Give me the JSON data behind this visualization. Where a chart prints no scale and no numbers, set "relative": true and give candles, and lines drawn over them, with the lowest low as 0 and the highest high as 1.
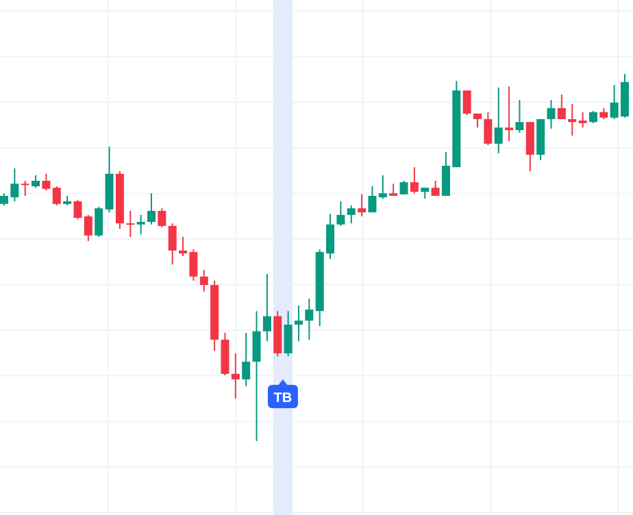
{
  "chart_data": {
    "type": "candlestick",
    "relative": true,
    "grid": true,
    "categories": [
      null,
      null,
      null,
      null,
      null,
      null,
      null,
      null,
      null,
      null,
      null,
      null,
      null,
      null,
      null,
      null,
      null,
      null,
      null,
      null,
      null,
      null,
      null,
      null,
      null,
      null,
      null,
      null,
      null,
      null,
      null,
      null,
      null,
      null,
      null,
      null,
      null,
      null,
      null,
      null,
      null,
      null,
      null,
      null,
      null,
      null,
      null,
      null,
      null,
      null,
      null,
      null,
      null,
      null,
      null,
      null,
      null,
      null,
      null,
      null
    ],
    "annotations": [
      "TB"
    ],
    "ohlc": [
      [
        0.646,
        0.675,
        0.642,
        0.668
      ],
      [
        0.664,
        0.743,
        0.653,
        0.701
      ],
      [
        0.701,
        0.709,
        0.668,
        0.698
      ],
      [
        0.694,
        0.724,
        0.69,
        0.709
      ],
      [
        0.709,
        0.728,
        0.683,
        0.687
      ],
      [
        0.69,
        0.694,
        0.642,
        0.646
      ],
      [
        0.646,
        0.668,
        0.642,
        0.653
      ],
      [
        0.653,
        0.657,
        0.604,
        0.608
      ],
      [
        0.612,
        0.616,
        0.545,
        0.56
      ],
      [
        0.56,
        0.638,
        0.556,
        0.634
      ],
      [
        0.631,
        0.802,
        0.623,
        0.728
      ],
      [
        0.728,
        0.735,
        0.578,
        0.593
      ],
      [
        0.593,
        0.627,
        0.556,
        0.59
      ],
      [
        0.59,
        0.616,
        0.563,
        0.597
      ],
      [
        0.597,
        0.675,
        0.59,
        0.627
      ],
      [
        0.627,
        0.634,
        0.582,
        0.586
      ],
      [
        0.586,
        0.593,
        0.481,
        0.519
      ],
      [
        0.519,
        0.556,
        0.504,
        0.511
      ],
      [
        0.515,
        0.522,
        0.437,
        0.448
      ],
      [
        0.448,
        0.466,
        0.407,
        0.425
      ],
      [
        0.425,
        0.437,
        0.246,
        0.276
      ],
      [
        0.276,
        0.295,
        0.179,
        0.183
      ],
      [
        0.183,
        0.239,
        0.116,
        0.168
      ],
      [
        0.168,
        0.295,
        0.149,
        0.216
      ],
      [
        0.216,
        0.354,
        0,
        0.299
      ],
      [
        0.299,
        0.455,
        0.272,
        0.34
      ],
      [
        0.34,
        0.354,
        0.231,
        0.239
      ],
      [
        0.239,
        0.354,
        0.231,
        0.317
      ],
      [
        0.317,
        0.369,
        0.272,
        0.328
      ],
      [
        0.328,
        0.388,
        0.276,
        0.358
      ],
      [
        0.354,
        0.522,
        0.313,
        0.515
      ],
      [
        0.511,
        0.619,
        0.496,
        0.59
      ],
      [
        0.59,
        0.653,
        0.586,
        0.616
      ],
      [
        0.616,
        0.642,
        0.593,
        0.634
      ],
      [
        0.634,
        0.672,
        0.612,
        0.623
      ],
      [
        0.623,
        0.694,
        0.623,
        0.668
      ],
      [
        0.664,
        0.724,
        0.66,
        0.675
      ],
      [
        0.675,
        0.701,
        0.668,
        0.668
      ],
      [
        0.672,
        0.709,
        0.672,
        0.705
      ],
      [
        0.705,
        0.746,
        0.675,
        0.679
      ],
      [
        0.679,
        0.69,
        0.66,
        0.69
      ],
      [
        0.69,
        0.709,
        0.668,
        0.668
      ],
      [
        0.668,
        0.787,
        0.668,
        0.75
      ],
      [
        0.746,
        0.981,
        0.746,
        0.955
      ],
      [
        0.955,
        0.955,
        0.888,
        0.892
      ],
      [
        0.892,
        0.892,
        0.854,
        0.877
      ],
      [
        0.877,
        0.896,
        0.806,
        0.81
      ],
      [
        0.81,
        0.963,
        0.784,
        0.854
      ],
      [
        0.854,
        0.966,
        0.817,
        0.847
      ],
      [
        0.847,
        0.929,
        0.84,
        0.869
      ],
      [
        0.869,
        0.869,
        0.735,
        0.78
      ],
      [
        0.78,
        0.877,
        0.765,
        0.877
      ],
      [
        0.877,
        0.929,
        0.851,
        0.907
      ],
      [
        0.907,
        0.944,
        0.877,
        0.877
      ],
      [
        0.877,
        0.918,
        0.832,
        0.869
      ],
      [
        0.873,
        0.896,
        0.854,
        0.866
      ],
      [
        0.869,
        0.899,
        0.866,
        0.896
      ],
      [
        0.896,
        0.907,
        0.877,
        0.881
      ],
      [
        0.881,
        0.97,
        0.877,
        0.922
      ],
      [
        0.884,
        1,
        0.881,
        0.978
      ]
    ]
  }
}
